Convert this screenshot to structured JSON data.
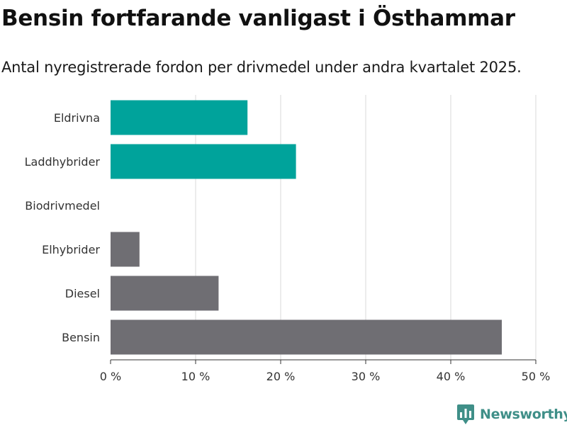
{
  "title": "Bensin fortfarande vanligast i Östhammar",
  "subtitle": "Antal nyregistrerade fordon per drivmedel under andra kvartalet 2025.",
  "brand": {
    "name": "Newsworthy",
    "logo_icon": "newsworthy-logo-icon"
  },
  "colors": {
    "highlight": "#00a39b",
    "default": "#6f6e73",
    "grid": "#d9d9d9",
    "text": "#333333"
  },
  "chart_data": {
    "type": "bar",
    "orientation": "horizontal",
    "categories": [
      "Eldrivna",
      "Laddhybrider",
      "Biodrivmedel",
      "Elhybrider",
      "Diesel",
      "Bensin"
    ],
    "values": [
      16.1,
      21.8,
      0,
      3.4,
      12.7,
      46.0
    ],
    "highlighted": [
      true,
      true,
      false,
      false,
      false,
      false
    ],
    "xlim": [
      0,
      50
    ],
    "xticks": [
      0,
      10,
      20,
      30,
      40,
      50
    ],
    "xtick_labels": [
      "0 %",
      "10 %",
      "20 %",
      "30 %",
      "40 %",
      "50 %"
    ],
    "grid": true
  }
}
